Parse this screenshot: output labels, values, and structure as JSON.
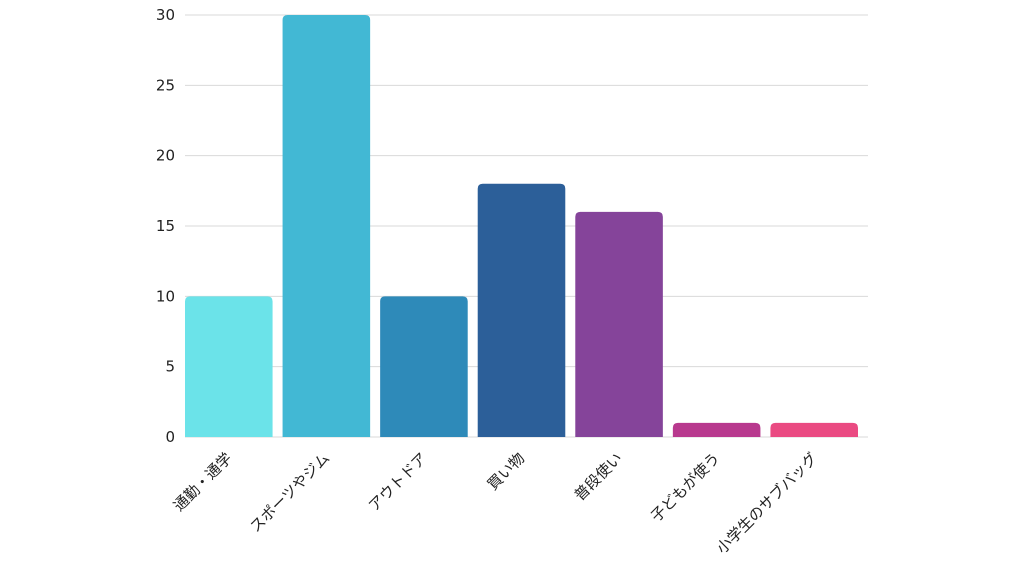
{
  "chart_data": {
    "type": "bar",
    "categories": [
      "通勤・通学",
      "スポーツやジム",
      "アウトドア",
      "買い物",
      "普段使い",
      "子どもが使う",
      "小学生のサブバッグ"
    ],
    "values": [
      10,
      30,
      10,
      18,
      16,
      1,
      1
    ],
    "colors": [
      "#6be3e9",
      "#42b8d4",
      "#2e8ab9",
      "#2c5f99",
      "#85449a",
      "#b8398e",
      "#ea4a82"
    ],
    "yticks": [
      "0",
      "5",
      "10",
      "15",
      "20",
      "25",
      "30"
    ],
    "ylim": [
      0,
      30
    ],
    "grid": true,
    "legend": "none"
  }
}
